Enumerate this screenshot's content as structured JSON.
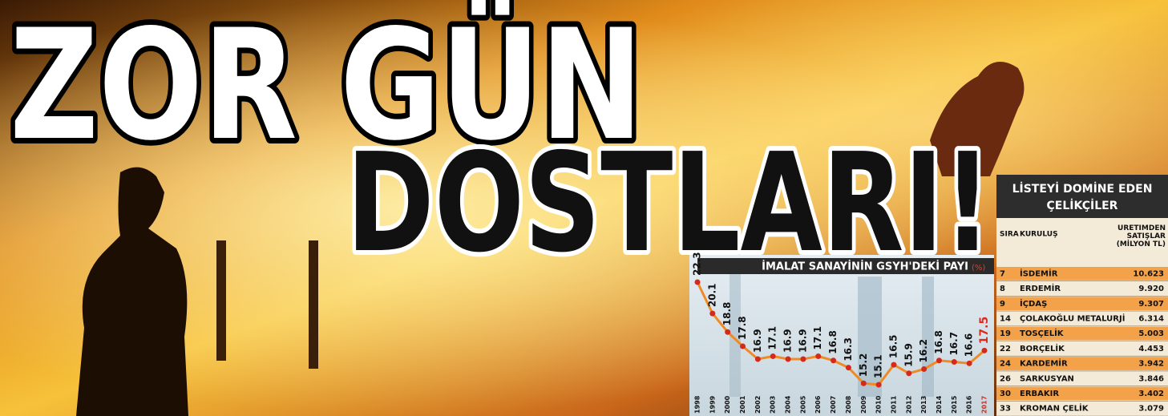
{
  "headline": {
    "line1": "ZOR GÜN",
    "line2": "DOSTLARI!"
  },
  "chart_data": {
    "type": "line",
    "title": "İMALAT SANAYİNİN GSYH'DEKİ PAYI",
    "unit": "(%)",
    "categories": [
      "1998",
      "1999",
      "2000",
      "2001",
      "2002",
      "2003",
      "2004",
      "2005",
      "2006",
      "2007",
      "2008",
      "2009",
      "2010",
      "2011",
      "2012",
      "2013",
      "2014",
      "2015",
      "2016",
      "2017"
    ],
    "values": [
      22.3,
      20.1,
      18.8,
      17.8,
      16.9,
      17.1,
      16.9,
      16.9,
      17.1,
      16.8,
      16.3,
      15.2,
      15.1,
      16.5,
      15.9,
      16.2,
      16.8,
      16.7,
      16.6,
      17.5
    ],
    "color": "#f08a24",
    "marker_color": "#d42a1c",
    "highlight_color": "#e0281c"
  },
  "table": {
    "title": [
      "LİSTEYİ DOMİNE EDEN",
      "ÇELİKÇİLER"
    ],
    "header": [
      "SIRA",
      "KURULUŞ",
      "ÜRETİMDEN SATIŞLAR (MİLYON TL)"
    ],
    "rows": [
      [
        "7",
        "İSDEMİR",
        "10.623"
      ],
      [
        "8",
        "ERDEMİR",
        "9.920"
      ],
      [
        "9",
        "İÇDAŞ",
        "9.307"
      ],
      [
        "14",
        "ÇOLAKOĞLU METALURJİ",
        "6.314"
      ],
      [
        "19",
        "TOSÇELİK",
        "5.003"
      ],
      [
        "22",
        "BORÇELİK",
        "4.453"
      ],
      [
        "24",
        "KARDEMİR",
        "3.942"
      ],
      [
        "26",
        "SARKUSYAN",
        "3.846"
      ],
      [
        "30",
        "ERBAKIR",
        "3.402"
      ],
      [
        "33",
        "KROMAN ÇELİK",
        "3.079"
      ]
    ]
  }
}
